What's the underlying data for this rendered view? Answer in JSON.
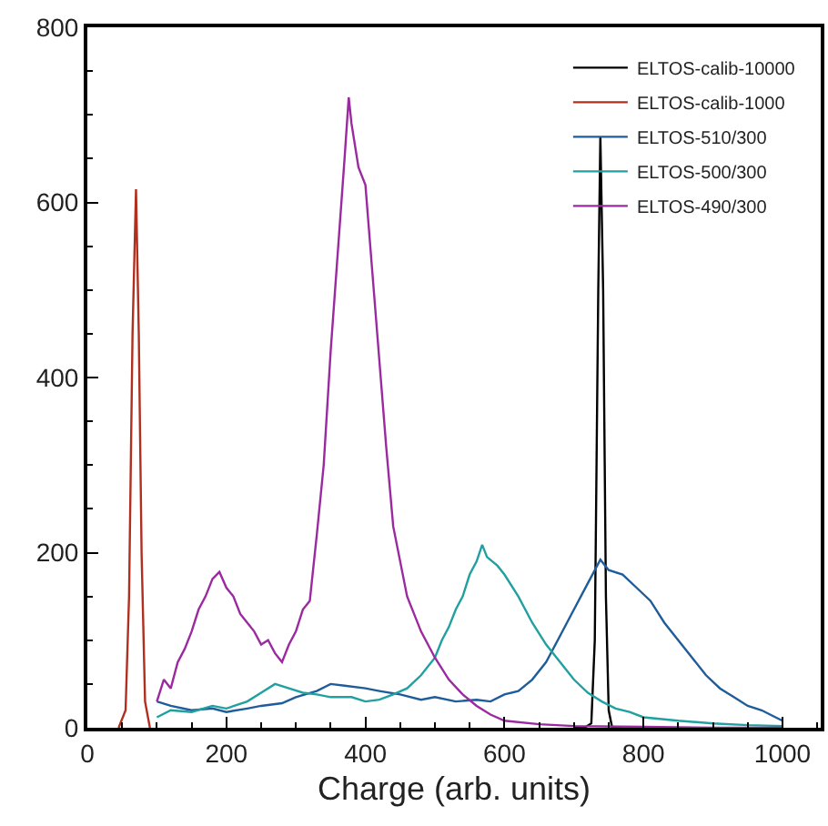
{
  "chart_data": {
    "type": "line",
    "xlabel": "Charge (arb. units)",
    "xlim": [
      0,
      1055
    ],
    "xticks": [
      0,
      200,
      400,
      600,
      800,
      1000
    ],
    "ylim": [
      0,
      800
    ],
    "yticks": [
      0,
      200,
      400,
      600,
      800
    ],
    "grid": false,
    "legend": "top right",
    "marker": "none",
    "line_style": "solid",
    "series": [
      {
        "name": "ELTOS-calib-10000",
        "color": "#000000",
        "x": [
          700,
          715,
          725,
          730,
          735,
          738,
          742,
          746,
          750,
          755,
          770
        ],
        "values": [
          0,
          0,
          5,
          100,
          500,
          675,
          500,
          150,
          20,
          0,
          0
        ]
      },
      {
        "name": "ELTOS-calib-1000",
        "color": "#b03020",
        "x": [
          45,
          55,
          60,
          65,
          70,
          74,
          78,
          83,
          90
        ],
        "values": [
          0,
          20,
          150,
          450,
          615,
          450,
          200,
          30,
          0
        ]
      },
      {
        "name": "ELTOS-510/300",
        "color": "#1f5c9a",
        "x": [
          100,
          120,
          150,
          180,
          200,
          230,
          250,
          280,
          300,
          330,
          350,
          370,
          400,
          420,
          450,
          480,
          500,
          530,
          560,
          580,
          600,
          620,
          640,
          660,
          680,
          700,
          720,
          738,
          750,
          770,
          790,
          810,
          830,
          850,
          870,
          890,
          910,
          930,
          950,
          970,
          990,
          1000
        ],
        "values": [
          30,
          25,
          20,
          22,
          18,
          22,
          25,
          28,
          35,
          42,
          50,
          48,
          45,
          42,
          38,
          32,
          35,
          30,
          32,
          30,
          38,
          42,
          55,
          75,
          105,
          135,
          165,
          192,
          180,
          175,
          160,
          145,
          120,
          100,
          80,
          60,
          45,
          35,
          25,
          20,
          12,
          8
        ]
      },
      {
        "name": "ELTOS-500/300",
        "color": "#20a0a0",
        "x": [
          100,
          120,
          150,
          180,
          200,
          230,
          250,
          270,
          290,
          310,
          330,
          350,
          380,
          400,
          420,
          440,
          460,
          480,
          500,
          510,
          520,
          530,
          540,
          550,
          560,
          568,
          575,
          590,
          600,
          620,
          640,
          660,
          680,
          700,
          720,
          740,
          760,
          780,
          800,
          850,
          900,
          950,
          1000
        ],
        "values": [
          12,
          20,
          18,
          25,
          22,
          30,
          40,
          50,
          45,
          40,
          38,
          35,
          35,
          30,
          32,
          38,
          45,
          60,
          80,
          100,
          115,
          135,
          150,
          175,
          190,
          209,
          195,
          185,
          175,
          150,
          120,
          95,
          75,
          55,
          40,
          30,
          22,
          18,
          12,
          8,
          5,
          3,
          2
        ]
      },
      {
        "name": "ELTOS-490/300",
        "color": "#9b2aa0",
        "x": [
          100,
          110,
          120,
          130,
          140,
          150,
          160,
          170,
          180,
          190,
          200,
          210,
          220,
          230,
          240,
          250,
          260,
          270,
          280,
          290,
          300,
          310,
          320,
          330,
          340,
          350,
          360,
          370,
          376,
          380,
          390,
          400,
          410,
          420,
          430,
          440,
          450,
          460,
          470,
          480,
          490,
          500,
          520,
          540,
          560,
          580,
          600,
          650,
          700,
          800,
          900,
          1000
        ],
        "values": [
          30,
          55,
          45,
          75,
          90,
          110,
          135,
          150,
          170,
          178,
          160,
          150,
          130,
          120,
          110,
          95,
          100,
          85,
          75,
          95,
          110,
          135,
          145,
          220,
          300,
          430,
          540,
          650,
          720,
          690,
          640,
          620,
          520,
          420,
          320,
          230,
          190,
          150,
          130,
          110,
          95,
          80,
          55,
          38,
          25,
          15,
          8,
          4,
          2,
          1,
          0,
          0
        ]
      }
    ]
  }
}
